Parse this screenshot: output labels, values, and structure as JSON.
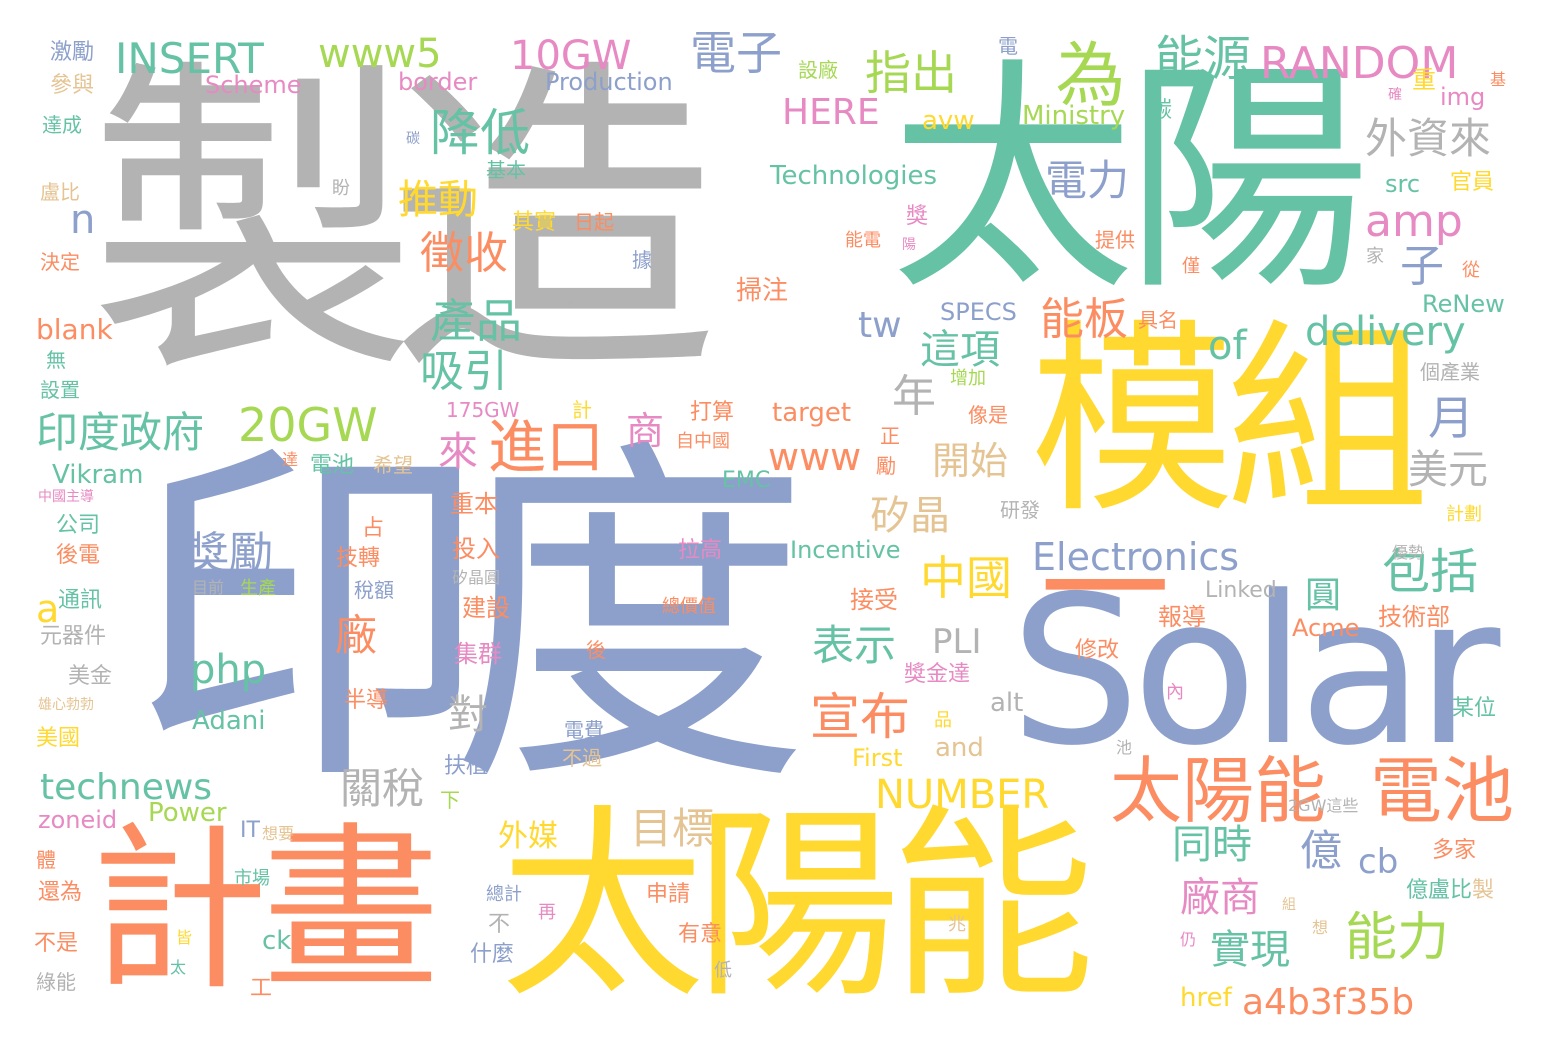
{
  "palette": {
    "gray": "#b3b3b3",
    "teal": "#66c2a5",
    "blue": "#8da0cb",
    "orange": "#fc8d62",
    "yellow": "#ffd92f",
    "green": "#a6d854",
    "pink": "#e78ac3",
    "tan": "#e5c494"
  },
  "words": [
    {
      "text": "製造",
      "color": "gray"
    },
    {
      "text": "太陽",
      "color": "teal"
    },
    {
      "text": "印度",
      "color": "blue"
    },
    {
      "text": "模組",
      "color": "yellow"
    },
    {
      "text": "Solar",
      "color": "blue"
    },
    {
      "text": "一",
      "color": "orange"
    },
    {
      "text": "計畫",
      "color": "orange"
    },
    {
      "text": "太陽能",
      "color": "yellow"
    },
    {
      "text": "太陽能",
      "color": "orange"
    },
    {
      "text": "電池",
      "color": "orange"
    },
    {
      "text": "為",
      "color": "green"
    },
    {
      "text": "能源",
      "color": "teal"
    },
    {
      "text": "RANDOM",
      "color": "pink"
    },
    {
      "text": "電子",
      "color": "blue"
    },
    {
      "text": "指出",
      "color": "green"
    },
    {
      "text": "10GW",
      "color": "pink"
    },
    {
      "text": "www5",
      "color": "green"
    },
    {
      "text": "INSERT",
      "color": "teal"
    },
    {
      "text": "HERE",
      "color": "pink"
    },
    {
      "text": "降低",
      "color": "teal"
    },
    {
      "text": "外資來",
      "color": "gray"
    },
    {
      "text": "amp",
      "color": "pink"
    },
    {
      "text": "子",
      "color": "blue"
    },
    {
      "text": "電力",
      "color": "blue"
    },
    {
      "text": "推動",
      "color": "yellow"
    },
    {
      "text": "徵收",
      "color": "orange"
    },
    {
      "text": "n",
      "color": "blue"
    },
    {
      "text": "產品",
      "color": "teal"
    },
    {
      "text": "吸引",
      "color": "teal"
    },
    {
      "text": "tw",
      "color": "blue"
    },
    {
      "text": "能板",
      "color": "orange"
    },
    {
      "text": "這項",
      "color": "teal"
    },
    {
      "text": "delivery",
      "color": "teal"
    },
    {
      "text": "of",
      "color": "teal"
    },
    {
      "text": "年",
      "color": "gray"
    },
    {
      "text": "月",
      "color": "blue"
    },
    {
      "text": "20GW",
      "color": "green"
    },
    {
      "text": "印度政府",
      "color": "teal"
    },
    {
      "text": "進口",
      "color": "orange"
    },
    {
      "text": "來",
      "color": "pink"
    },
    {
      "text": "商",
      "color": "pink"
    },
    {
      "text": "www",
      "color": "orange"
    },
    {
      "text": "開始",
      "color": "tan"
    },
    {
      "text": "美元",
      "color": "gray"
    },
    {
      "text": "矽晶",
      "color": "tan"
    },
    {
      "text": "獎勵",
      "color": "blue"
    },
    {
      "text": "中國",
      "color": "yellow"
    },
    {
      "text": "Electronics",
      "color": "blue"
    },
    {
      "text": "包括",
      "color": "teal"
    },
    {
      "text": "圓",
      "color": "teal"
    },
    {
      "text": "廠",
      "color": "orange"
    },
    {
      "text": "PLI",
      "color": "gray"
    },
    {
      "text": "表示",
      "color": "teal"
    },
    {
      "text": "php",
      "color": "teal"
    },
    {
      "text": "a",
      "color": "yellow"
    },
    {
      "text": "宣布",
      "color": "orange"
    },
    {
      "text": "對",
      "color": "gray"
    },
    {
      "text": "關稅",
      "color": "gray"
    },
    {
      "text": "NUMBER",
      "color": "yellow"
    },
    {
      "text": "technews",
      "color": "teal"
    },
    {
      "text": "目標",
      "color": "tan"
    },
    {
      "text": "同時",
      "color": "teal"
    },
    {
      "text": "億",
      "color": "blue"
    },
    {
      "text": "cb",
      "color": "blue"
    },
    {
      "text": "能力",
      "color": "green"
    },
    {
      "text": "廠商",
      "color": "pink"
    },
    {
      "text": "實現",
      "color": "teal"
    },
    {
      "text": "a4b3f35b",
      "color": "orange"
    },
    {
      "text": "外媒",
      "color": "yellow"
    },
    {
      "text": "zoneid",
      "color": "pink"
    },
    {
      "text": "Power",
      "color": "green"
    },
    {
      "text": "Adani",
      "color": "teal"
    },
    {
      "text": "Incentive",
      "color": "teal"
    },
    {
      "text": "Technologies",
      "color": "teal"
    },
    {
      "text": "Ministry",
      "color": "green"
    },
    {
      "text": "Production",
      "color": "blue"
    },
    {
      "text": "Scheme",
      "color": "pink"
    },
    {
      "text": "border",
      "color": "pink"
    },
    {
      "text": "avw",
      "color": "yellow"
    },
    {
      "text": "img",
      "color": "pink"
    },
    {
      "text": "src",
      "color": "teal"
    },
    {
      "text": "官員",
      "color": "yellow"
    },
    {
      "text": "blank",
      "color": "orange"
    },
    {
      "text": "SPECS",
      "color": "blue"
    },
    {
      "text": "ReNew",
      "color": "teal"
    },
    {
      "text": "target",
      "color": "orange"
    },
    {
      "text": "175GW",
      "color": "pink"
    },
    {
      "text": "Vikram",
      "color": "teal"
    },
    {
      "text": "EMC",
      "color": "teal"
    },
    {
      "text": "Linked",
      "color": "gray"
    },
    {
      "text": "Acme",
      "color": "orange"
    },
    {
      "text": "First",
      "color": "yellow"
    },
    {
      "text": "and",
      "color": "tan"
    },
    {
      "text": "alt",
      "color": "gray"
    },
    {
      "text": "IT",
      "color": "blue"
    },
    {
      "text": "ck",
      "color": "teal"
    },
    {
      "text": "href",
      "color": "yellow"
    },
    {
      "text": "2GW這些",
      "color": "gray"
    },
    {
      "text": "激勵",
      "color": "blue"
    },
    {
      "text": "參與",
      "color": "tan"
    },
    {
      "text": "達成",
      "color": "teal"
    },
    {
      "text": "盧比",
      "color": "tan"
    },
    {
      "text": "決定",
      "color": "orange"
    },
    {
      "text": "無",
      "color": "teal"
    },
    {
      "text": "設置",
      "color": "teal"
    },
    {
      "text": "公司",
      "color": "teal"
    },
    {
      "text": "後電",
      "color": "orange"
    },
    {
      "text": "通訊",
      "color": "teal"
    },
    {
      "text": "元器件",
      "color": "gray"
    },
    {
      "text": "美金",
      "color": "gray"
    },
    {
      "text": "雄心勃勃",
      "color": "tan"
    },
    {
      "text": "美國",
      "color": "yellow"
    },
    {
      "text": "體",
      "color": "orange"
    },
    {
      "text": "還為",
      "color": "orange"
    },
    {
      "text": "不是",
      "color": "orange"
    },
    {
      "text": "綠能",
      "color": "gray"
    },
    {
      "text": "中國主導",
      "color": "pink"
    },
    {
      "text": "基本",
      "color": "teal"
    },
    {
      "text": "其實",
      "color": "yellow"
    },
    {
      "text": "日起",
      "color": "orange"
    },
    {
      "text": "盼",
      "color": "gray"
    },
    {
      "text": "碳",
      "color": "teal"
    },
    {
      "text": "設廠",
      "color": "green"
    },
    {
      "text": "碳",
      "color": "blue"
    },
    {
      "text": "電",
      "color": "blue"
    },
    {
      "text": "據",
      "color": "blue"
    },
    {
      "text": "掃注",
      "color": "orange"
    },
    {
      "text": "能電",
      "color": "orange"
    },
    {
      "text": "獎",
      "color": "pink"
    },
    {
      "text": "提供",
      "color": "orange"
    },
    {
      "text": "具名",
      "color": "orange"
    },
    {
      "text": "增加",
      "color": "green"
    },
    {
      "text": "像是",
      "color": "orange"
    },
    {
      "text": "打算",
      "color": "orange"
    },
    {
      "text": "自中國",
      "color": "orange"
    },
    {
      "text": "正",
      "color": "orange"
    },
    {
      "text": "勵",
      "color": "orange"
    },
    {
      "text": "電池",
      "color": "teal"
    },
    {
      "text": "希望",
      "color": "tan"
    },
    {
      "text": "占",
      "color": "orange"
    },
    {
      "text": "技轉",
      "color": "orange"
    },
    {
      "text": "稅額",
      "color": "blue"
    },
    {
      "text": "研發",
      "color": "gray"
    },
    {
      "text": "重本",
      "color": "orange"
    },
    {
      "text": "投入",
      "color": "orange"
    },
    {
      "text": "矽晶圓",
      "color": "gray"
    },
    {
      "text": "建設",
      "color": "orange"
    },
    {
      "text": "拉高",
      "color": "pink"
    },
    {
      "text": "接受",
      "color": "orange"
    },
    {
      "text": "總價值",
      "color": "orange"
    },
    {
      "text": "生產",
      "color": "green"
    },
    {
      "text": "目前",
      "color": "gray"
    },
    {
      "text": "集群",
      "color": "pink"
    },
    {
      "text": "半導",
      "color": "orange"
    },
    {
      "text": "扶植",
      "color": "blue"
    },
    {
      "text": "電費",
      "color": "blue"
    },
    {
      "text": "不過",
      "color": "tan"
    },
    {
      "text": "下",
      "color": "green"
    },
    {
      "text": "獎金達",
      "color": "pink"
    },
    {
      "text": "修改",
      "color": "orange"
    },
    {
      "text": "報導",
      "color": "orange"
    },
    {
      "text": "技術部",
      "color": "orange"
    },
    {
      "text": "某位",
      "color": "teal"
    },
    {
      "text": "優勢",
      "color": "gray"
    },
    {
      "text": "計劃",
      "color": "yellow"
    },
    {
      "text": "個產業",
      "color": "gray"
    },
    {
      "text": "從",
      "color": "orange"
    },
    {
      "text": "僅",
      "color": "orange"
    },
    {
      "text": "家",
      "color": "gray"
    },
    {
      "text": "多家",
      "color": "orange"
    },
    {
      "text": "億盧比",
      "color": "teal"
    },
    {
      "text": "製",
      "color": "tan"
    },
    {
      "text": "申請",
      "color": "orange"
    },
    {
      "text": "有意",
      "color": "orange"
    },
    {
      "text": "總計",
      "color": "blue"
    },
    {
      "text": "不",
      "color": "gray"
    },
    {
      "text": "再",
      "color": "pink"
    },
    {
      "text": "什麼",
      "color": "blue"
    },
    {
      "text": "皆",
      "color": "yellow"
    },
    {
      "text": "太",
      "color": "teal"
    },
    {
      "text": "工",
      "color": "orange"
    },
    {
      "text": "低",
      "color": "gray"
    },
    {
      "text": "兆",
      "color": "tan"
    },
    {
      "text": "仍",
      "color": "pink"
    },
    {
      "text": "想",
      "color": "tan"
    },
    {
      "text": "市場",
      "color": "teal"
    },
    {
      "text": "想要",
      "color": "tan"
    },
    {
      "text": "中",
      "color": "blue"
    },
    {
      "text": "後",
      "color": "orange"
    },
    {
      "text": "品",
      "color": "yellow"
    },
    {
      "text": "內",
      "color": "pink"
    },
    {
      "text": "池",
      "color": "gray"
    },
    {
      "text": "組",
      "color": "tan"
    },
    {
      "text": "計",
      "color": "yellow"
    },
    {
      "text": "達",
      "color": "orange"
    },
    {
      "text": "重",
      "color": "yellow"
    },
    {
      "text": "基",
      "color": "orange"
    },
    {
      "text": "確",
      "color": "pink"
    },
    {
      "text": "陽",
      "color": "pink"
    },
    {
      "text": "碩",
      "color": "gray"
    }
  ]
}
